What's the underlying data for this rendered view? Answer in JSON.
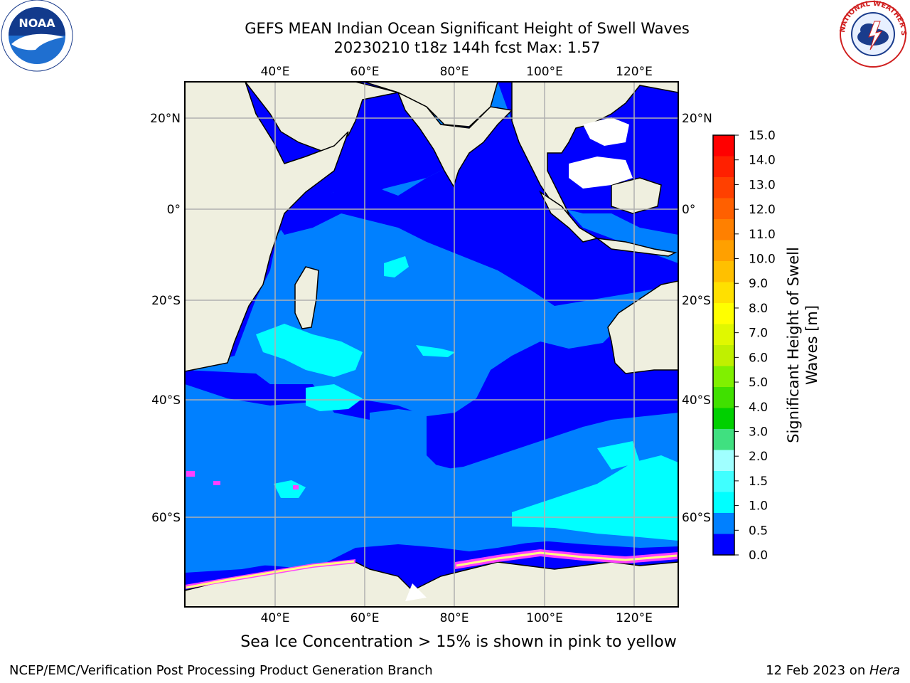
{
  "title": {
    "line1": "GEFS MEAN Indian Ocean Significant Height of Swell Waves",
    "line2": "20230210 t18z 144h fcst   Max: 1.57"
  },
  "map": {
    "lon_ticks": [
      "40°E",
      "60°E",
      "80°E",
      "100°E",
      "120°E"
    ],
    "lat_ticks_left": [
      "20°N",
      "0°",
      "20°S",
      "40°S",
      "60°S"
    ],
    "lat_ticks_right": [
      "20°N",
      "0°",
      "20°S",
      "40°S",
      "60°S"
    ],
    "colors": {
      "ocean_0": "#0000ff",
      "ocean_05": "#0080ff",
      "ocean_10": "#00ffff",
      "ocean_15": "#40ffff",
      "land": "#efefdf",
      "ice_pink": "#ff40ff",
      "ice_yellow": "#ffff80",
      "grid": "#b0b0b0"
    }
  },
  "colorbar": {
    "title_line1": "Significant Height of Swell",
    "title_line2": "Waves [m]",
    "ticks": [
      "15.0",
      "14.0",
      "13.0",
      "12.0",
      "11.0",
      "10.0",
      "9.0",
      "8.0",
      "7.0",
      "6.0",
      "5.0",
      "4.0",
      "3.0",
      "2.0",
      "1.5",
      "1.0",
      "0.5",
      "0.0"
    ],
    "colors": [
      "#ff0000",
      "#ff2000",
      "#ff4000",
      "#ff6000",
      "#ff8000",
      "#ffa000",
      "#ffc000",
      "#ffe000",
      "#ffff00",
      "#e0f800",
      "#c0f000",
      "#80f000",
      "#40e000",
      "#00d000",
      "#40e080",
      "#a0ffff",
      "#40ffff",
      "#00ffff",
      "#0080ff",
      "#0000ff"
    ]
  },
  "footer": {
    "note": "Sea Ice Concentration > 15% is shown in pink to yellow",
    "credit_left": "NCEP/EMC/Verification Post Processing Product Generation Branch",
    "credit_date": "12 Feb 2023 on ",
    "credit_host": "Hera"
  },
  "logos": {
    "left": "NOAA",
    "right_text": "NATIONAL WEATHER SERVICE"
  }
}
